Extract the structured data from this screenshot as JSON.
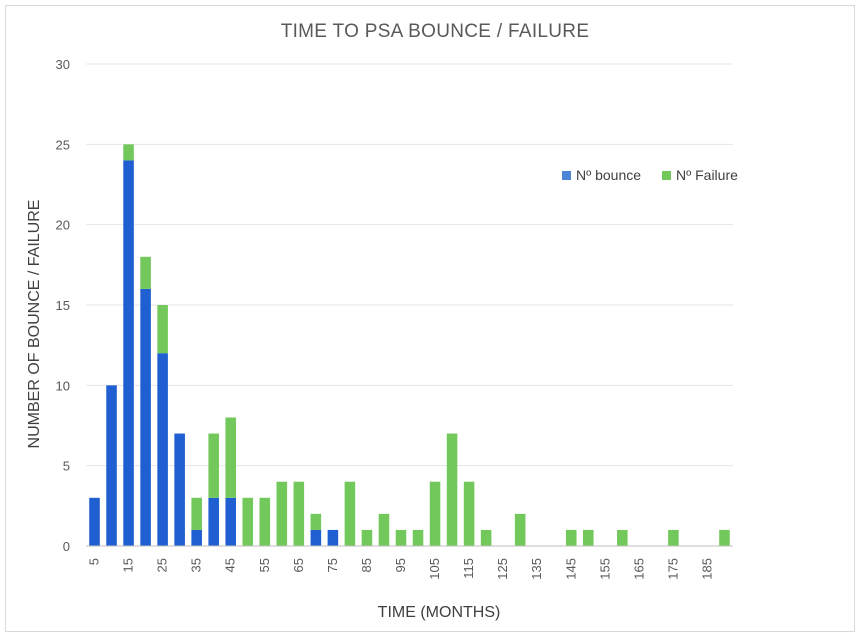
{
  "chart_data": {
    "type": "bar",
    "stacked": true,
    "title": "TIME TO PSA BOUNCE / FAILURE",
    "xlabel": "TIME (MONTHS)",
    "ylabel": "NUMBER OF BOUNCE / FAILURE",
    "ylim": [
      0,
      30
    ],
    "yticks": [
      0,
      5,
      10,
      15,
      20,
      25,
      30
    ],
    "grid": true,
    "legend_position": "right",
    "categories": [
      5,
      10,
      15,
      20,
      25,
      30,
      35,
      40,
      45,
      50,
      55,
      60,
      65,
      70,
      75,
      80,
      85,
      90,
      95,
      100,
      105,
      110,
      115,
      120,
      125,
      130,
      135,
      140,
      145,
      150,
      155,
      160,
      165,
      170,
      175,
      180,
      185,
      190
    ],
    "xtick_labels": [
      "5",
      "15",
      "25",
      "35",
      "45",
      "55",
      "65",
      "75",
      "85",
      "95",
      "105",
      "115",
      "125",
      "135",
      "145",
      "155",
      "165",
      "175",
      "185"
    ],
    "series": [
      {
        "name": "Nº bounce",
        "color": "#1f5fd1",
        "legend_color": "#4d84d6",
        "values": [
          3,
          10,
          24,
          16,
          12,
          7,
          1,
          3,
          3,
          0,
          0,
          0,
          0,
          1,
          1,
          0,
          0,
          0,
          0,
          0,
          0,
          0,
          0,
          0,
          0,
          0,
          0,
          0,
          0,
          0,
          0,
          0,
          0,
          0,
          0,
          0,
          0,
          0
        ]
      },
      {
        "name": "Nº Failure",
        "color": "#72c85a",
        "legend_color": "#72c85a",
        "values": [
          0,
          0,
          1,
          2,
          3,
          0,
          2,
          4,
          5,
          3,
          3,
          4,
          4,
          1,
          0,
          4,
          1,
          2,
          1,
          1,
          4,
          7,
          4,
          1,
          0,
          2,
          0,
          0,
          1,
          1,
          0,
          1,
          0,
          0,
          1,
          0,
          0,
          1
        ]
      }
    ]
  }
}
